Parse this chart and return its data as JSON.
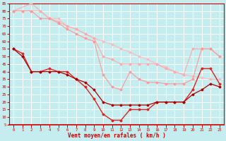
{
  "xlabel": "Vent moyen/en rafales ( km/h )",
  "xlim": [
    -0.5,
    23.5
  ],
  "ylim": [
    5,
    85
  ],
  "yticks": [
    5,
    10,
    15,
    20,
    25,
    30,
    35,
    40,
    45,
    50,
    55,
    60,
    65,
    70,
    75,
    80,
    85
  ],
  "xticks": [
    0,
    1,
    2,
    3,
    4,
    5,
    6,
    7,
    8,
    9,
    10,
    11,
    12,
    13,
    14,
    15,
    16,
    17,
    18,
    19,
    20,
    21,
    22,
    23
  ],
  "bg_color": "#c5ecee",
  "grid_color": "#ffffff",
  "series": [
    {
      "x": [
        0,
        1,
        2,
        3,
        4,
        5,
        6,
        7,
        8,
        9,
        10,
        11,
        12,
        13,
        14,
        15,
        16,
        17,
        18,
        19,
        20,
        21,
        22,
        23
      ],
      "y": [
        80,
        80,
        80,
        80,
        75,
        75,
        70,
        68,
        65,
        62,
        60,
        58,
        55,
        53,
        50,
        48,
        45,
        43,
        40,
        38,
        37,
        36,
        35,
        35
      ],
      "color": "#ffbbbb",
      "lw": 0.8,
      "marker": "D",
      "ms": 1.5
    },
    {
      "x": [
        0,
        2,
        3,
        4,
        5,
        6,
        7,
        8,
        9,
        10,
        11,
        12,
        13,
        14,
        15,
        16,
        17,
        18,
        19,
        20,
        21,
        22,
        23
      ],
      "y": [
        80,
        85,
        80,
        75,
        73,
        70,
        68,
        65,
        62,
        50,
        48,
        45,
        45,
        45,
        45,
        45,
        42,
        40,
        38,
        55,
        55,
        55,
        50
      ],
      "color": "#ffaaaa",
      "lw": 0.8,
      "marker": "D",
      "ms": 1.5
    },
    {
      "x": [
        0,
        1,
        2,
        3,
        4,
        5,
        6,
        7,
        8,
        9,
        10,
        11,
        12,
        13,
        14,
        15,
        16,
        17,
        18,
        19,
        20,
        21,
        22,
        23
      ],
      "y": [
        80,
        80,
        80,
        75,
        75,
        72,
        68,
        65,
        62,
        60,
        38,
        30,
        28,
        40,
        35,
        33,
        33,
        32,
        32,
        32,
        35,
        55,
        55,
        50
      ],
      "color": "#ff9999",
      "lw": 0.8,
      "marker": "D",
      "ms": 1.5
    },
    {
      "x": [
        0,
        1,
        2,
        3,
        4,
        5,
        6,
        7,
        8,
        9,
        10,
        11,
        12,
        13,
        14,
        15,
        16,
        17,
        18,
        19,
        20,
        21,
        22,
        23
      ],
      "y": [
        55,
        52,
        40,
        40,
        42,
        40,
        40,
        35,
        30,
        22,
        12,
        8,
        8,
        15,
        15,
        15,
        20,
        20,
        20,
        20,
        28,
        42,
        42,
        32
      ],
      "color": "#dd2222",
      "lw": 1.0,
      "marker": "D",
      "ms": 1.5
    },
    {
      "x": [
        0,
        1,
        2,
        3,
        4,
        5,
        6,
        7,
        8,
        9,
        10,
        11,
        12,
        13,
        14,
        15,
        16,
        17,
        18,
        19,
        20,
        21,
        22,
        23
      ],
      "y": [
        55,
        50,
        40,
        40,
        40,
        40,
        38,
        35,
        33,
        28,
        20,
        18,
        18,
        18,
        18,
        18,
        20,
        20,
        20,
        20,
        25,
        28,
        32,
        30
      ],
      "color": "#aa0000",
      "lw": 0.9,
      "marker": "D",
      "ms": 1.5
    }
  ]
}
